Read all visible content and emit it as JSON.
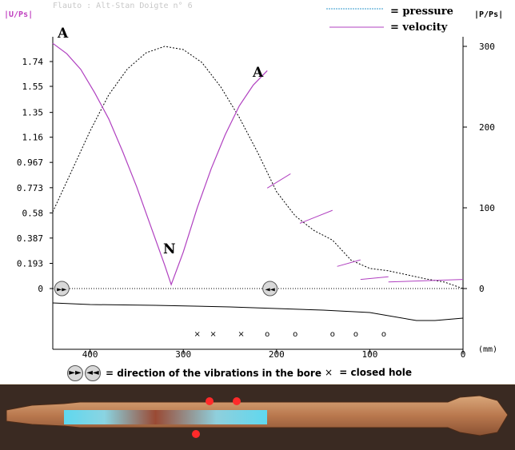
{
  "chart_data": {
    "type": "line",
    "title_partial": "Flauto : Alt-Stan    Doigte n° 6",
    "x_unit": "(mm)",
    "left_axis_label": "|U/Ps|",
    "right_axis_label": "|P/Ps|",
    "x_ticks": [
      400,
      300,
      200,
      100,
      0
    ],
    "left_ticks": [
      "1.74",
      "1.55",
      "1.35",
      "1.16",
      "0.967",
      "0.773",
      "0.58",
      "0.387",
      "0.193",
      "0"
    ],
    "right_ticks": [
      "300",
      "200",
      "100",
      "0"
    ],
    "xlim": [
      440,
      0
    ],
    "left_ylim": [
      0,
      1.93
    ],
    "right_ylim": [
      0,
      300
    ],
    "legend": [
      {
        "label": "= pressure",
        "color": "#3399cc",
        "style": "dashed"
      },
      {
        "label": "= velocity",
        "color": "#b040c0",
        "style": "solid"
      }
    ],
    "series": [
      {
        "name": "pressure",
        "axis": "right",
        "x": [
          440,
          420,
          400,
          380,
          360,
          340,
          320,
          300,
          280,
          260,
          240,
          220,
          200,
          180,
          160,
          140,
          120,
          100,
          80,
          60,
          40,
          20,
          0
        ],
        "y": [
          95,
          145,
          195,
          240,
          272,
          292,
          300,
          296,
          280,
          250,
          212,
          168,
          120,
          90,
          72,
          60,
          35,
          25,
          22,
          17,
          12,
          8,
          0
        ]
      },
      {
        "name": "velocity",
        "axis": "left",
        "x": [
          440,
          425,
          410,
          395,
          380,
          365,
          350,
          335,
          320,
          313,
          300,
          285,
          270,
          255,
          240,
          225,
          210
        ],
        "y": [
          1.88,
          1.8,
          1.68,
          1.5,
          1.3,
          1.05,
          0.78,
          0.48,
          0.18,
          0.03,
          0.28,
          0.62,
          0.92,
          1.18,
          1.4,
          1.56,
          1.67
        ]
      },
      {
        "name": "velocity_hole_segments",
        "axis": "left",
        "segments": [
          {
            "x": [
              210,
              185
            ],
            "y": [
              0.77,
              0.88
            ]
          },
          {
            "x": [
              175,
              140
            ],
            "y": [
              0.5,
              0.6
            ]
          },
          {
            "x": [
              135,
              110
            ],
            "y": [
              0.17,
              0.22
            ]
          },
          {
            "x": [
              110,
              80
            ],
            "y": [
              0.07,
              0.09
            ]
          },
          {
            "x": [
              80,
              0
            ],
            "y": [
              0.05,
              0.07
            ]
          }
        ]
      }
    ],
    "annotations": [
      {
        "text": "A",
        "x": 440,
        "y": 1.95
      },
      {
        "text": "A",
        "x": 218,
        "y": 1.73
      },
      {
        "text": "N",
        "x": 315,
        "y": 0.28
      }
    ],
    "bore_x": [
      440,
      400,
      330,
      250,
      150,
      100,
      50,
      30,
      0
    ],
    "closed_holes_x": [
      285,
      268,
      238
    ],
    "open_holes_x": [
      210,
      180,
      140,
      115,
      85
    ],
    "direction_markers": [
      {
        "symbol": "►►",
        "x": 432
      },
      {
        "symbol": "◄◄",
        "x": 207
      }
    ]
  },
  "bottom_legend": {
    "direction_text": "= direction of the vibrations in the bore",
    "forward_symbol": "►►",
    "backward_symbol": "◄◄",
    "closed_symbol": "×",
    "closed_text": "= closed hole",
    "open_symbol": "o"
  },
  "colors": {
    "pressure": "#000000",
    "velocity": "#b040c0",
    "legend_pressure": "#3399cc",
    "axis_label": "#c040c0",
    "tick_text": "#000000"
  }
}
